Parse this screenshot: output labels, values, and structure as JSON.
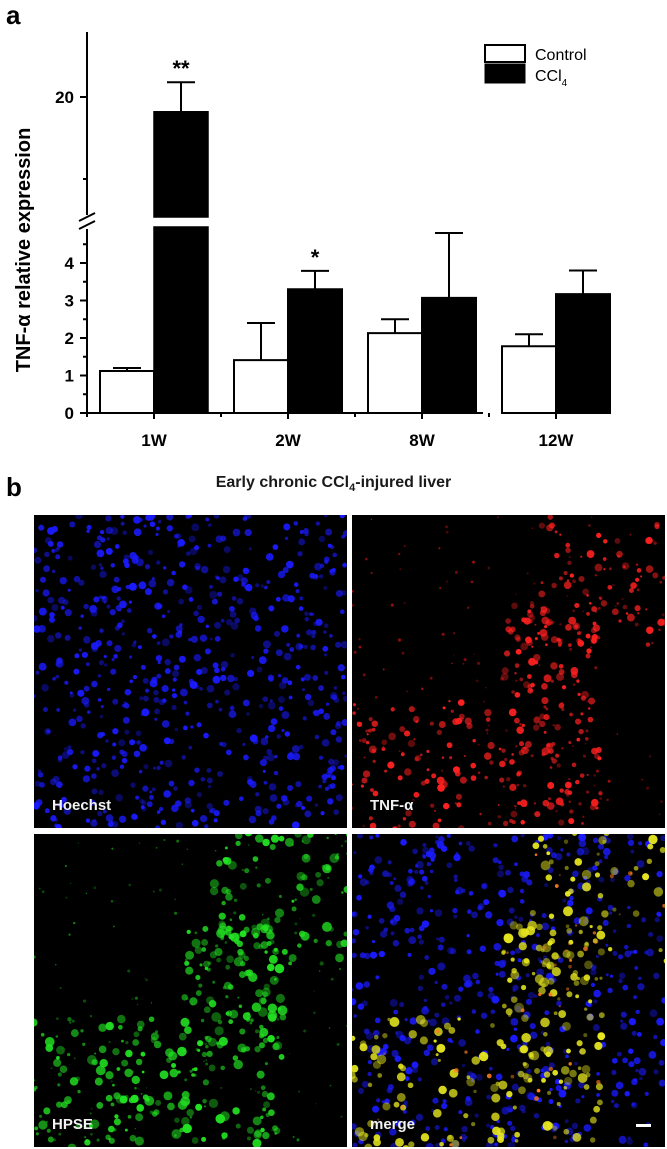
{
  "panel_a": {
    "letter": "a"
  },
  "panel_b": {
    "letter": "b",
    "title_prefix": "Early chronic CCl",
    "title_sub": "4",
    "title_suffix": "-injured liver",
    "images": [
      {
        "label": "Hoechst",
        "channel": "blue",
        "color": "#1a1aff"
      },
      {
        "label": "TNF-α",
        "channel": "red",
        "color": "#ff2020"
      },
      {
        "label": "HPSE",
        "channel": "green",
        "color": "#22e022"
      },
      {
        "label": "merge",
        "channel": "merge",
        "color": "#e6e620"
      }
    ]
  },
  "chart_data": {
    "type": "bar",
    "title": "",
    "xlabel": "",
    "ylabel": "TNF-α relative expression",
    "categories": [
      "1W",
      "2W",
      "8W",
      "12W"
    ],
    "series": [
      {
        "name": "Control",
        "fill": "#ffffff",
        "values": [
          1.12,
          1.41,
          2.13,
          1.78
        ],
        "error_upper": [
          1.2,
          2.4,
          2.5,
          2.1
        ]
      },
      {
        "name": "CCl4",
        "fill": "#000000",
        "values": [
          19.1,
          3.3,
          3.07,
          3.17
        ],
        "error_upper": [
          20.9,
          3.79,
          4.8,
          3.8
        ]
      }
    ],
    "significance": [
      {
        "category": "1W",
        "series": "CCl4",
        "mark": "**"
      },
      {
        "category": "2W",
        "series": "CCl4",
        "mark": "*"
      }
    ],
    "axis_break": {
      "lower_range": [
        0,
        5
      ],
      "upper_range": [
        14,
        24
      ]
    },
    "yticks_lower": [
      "0",
      "1",
      "2",
      "3",
      "4"
    ],
    "yticks_upper": [
      "20"
    ],
    "legend": {
      "position": "upper right",
      "entries": [
        "Control",
        "CCl4"
      ]
    },
    "grid": false
  }
}
